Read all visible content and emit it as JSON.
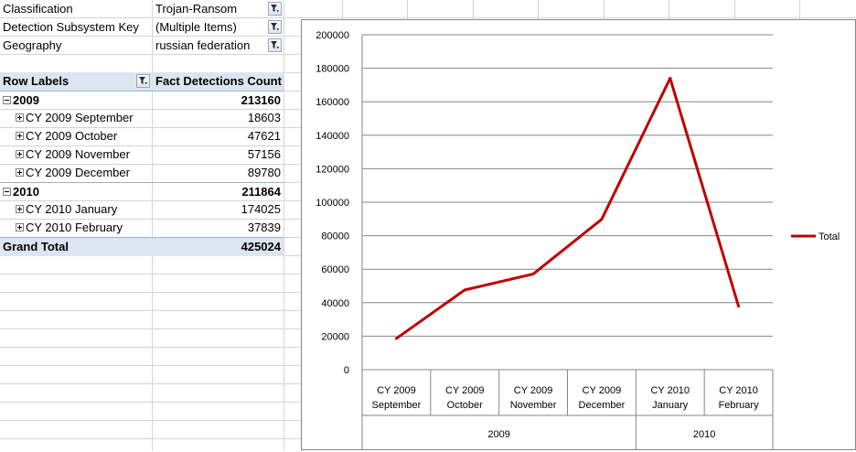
{
  "filters": [
    {
      "label": "Classification",
      "value": "Trojan-Ransom"
    },
    {
      "label": "Detection Subsystem Key",
      "value": "(Multiple Items)"
    },
    {
      "label": "Geography",
      "value": "russian federation"
    }
  ],
  "pivot": {
    "row_labels_header": "Row Labels",
    "value_header": "Fact Detections Count",
    "groups": [
      {
        "label": "2009",
        "total": "213160",
        "items": [
          {
            "label": "CY 2009 September",
            "value": "18603"
          },
          {
            "label": "CY 2009 October",
            "value": "47621"
          },
          {
            "label": "CY 2009 November",
            "value": "57156"
          },
          {
            "label": "CY 2009 December",
            "value": "89780"
          }
        ]
      },
      {
        "label": "2010",
        "total": "211864",
        "items": [
          {
            "label": "CY 2010 January",
            "value": "174025"
          },
          {
            "label": "CY 2010 February",
            "value": "37839"
          }
        ]
      }
    ],
    "grand_total_label": "Grand Total",
    "grand_total": "425024"
  },
  "icons": {
    "filter": "filter-dropdown-icon",
    "collapse": "collapse-minus-icon",
    "expand": "expand-plus-icon"
  },
  "colors": {
    "line": "#c00000",
    "header_fill": "#dce6f1"
  },
  "chart_data": {
    "type": "line",
    "categories": [
      {
        "line1": "CY 2009",
        "line2": "September",
        "group": "2009"
      },
      {
        "line1": "CY 2009",
        "line2": "October",
        "group": "2009"
      },
      {
        "line1": "CY 2009",
        "line2": "November",
        "group": "2009"
      },
      {
        "line1": "CY 2009",
        "line2": "December",
        "group": "2009"
      },
      {
        "line1": "CY 2010",
        "line2": "January",
        "group": "2010"
      },
      {
        "line1": "CY 2010",
        "line2": "February",
        "group": "2010"
      }
    ],
    "groups": [
      "2009",
      "2010"
    ],
    "series": [
      {
        "name": "Total",
        "values": [
          18603,
          47621,
          57156,
          89780,
          174025,
          37839
        ]
      }
    ],
    "ylim": [
      0,
      200000
    ],
    "yticks": [
      "0",
      "20000",
      "40000",
      "60000",
      "80000",
      "100000",
      "120000",
      "140000",
      "160000",
      "180000",
      "200000"
    ],
    "grid": true,
    "legend": "right"
  }
}
